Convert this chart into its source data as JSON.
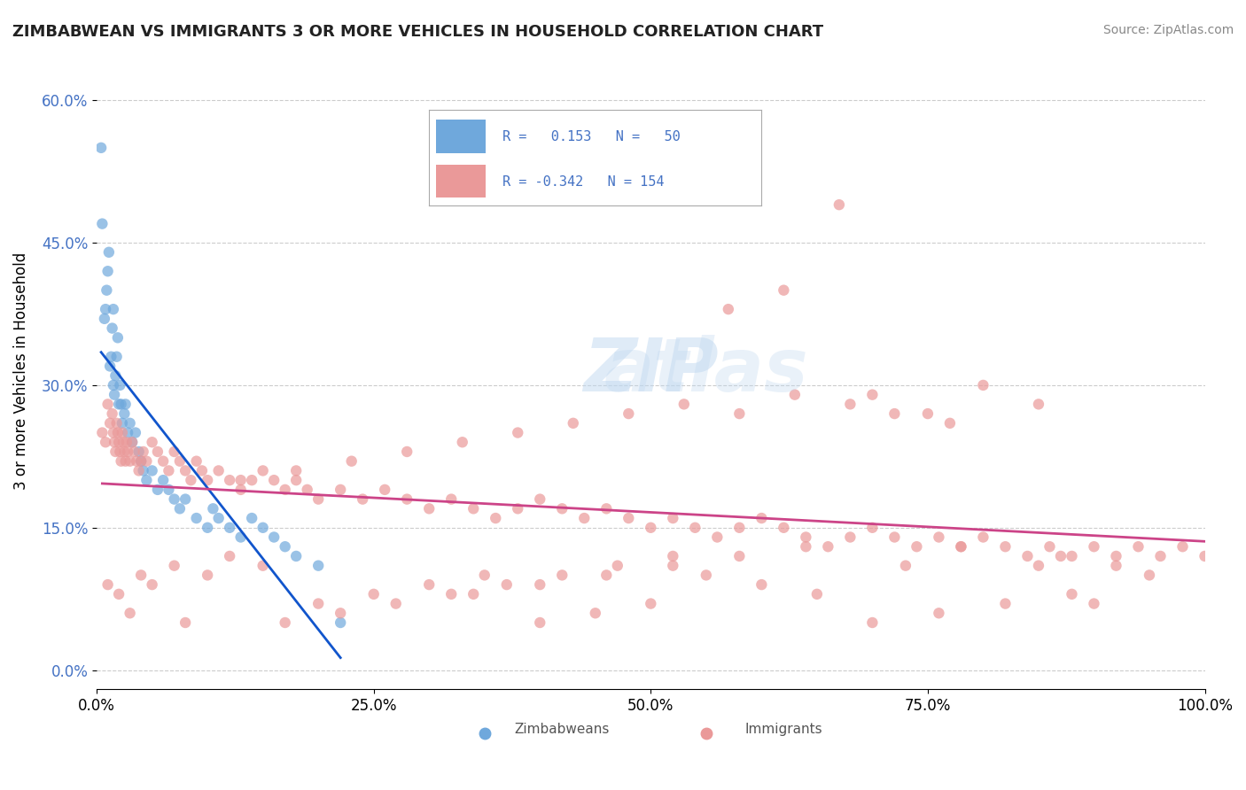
{
  "title": "ZIMBABWEAN VS IMMIGRANTS 3 OR MORE VEHICLES IN HOUSEHOLD CORRELATION CHART",
  "source": "Source: ZipAtlas.com",
  "ylabel": "3 or more Vehicles in Household",
  "xlabel": "",
  "xlim": [
    0.0,
    100.0
  ],
  "ylim": [
    -2.0,
    65.0
  ],
  "yticks": [
    0.0,
    15.0,
    30.0,
    45.0,
    60.0
  ],
  "xticks": [
    0.0,
    25.0,
    50.0,
    75.0,
    100.0
  ],
  "xtick_labels": [
    "0.0%",
    "25.0%",
    "50.0%",
    "75.0%",
    "100.0%"
  ],
  "ytick_labels": [
    "0.0%",
    "15.0%",
    "30.0%",
    "45.0%",
    "60.0%"
  ],
  "blue_R": 0.153,
  "blue_N": 50,
  "pink_R": -0.342,
  "pink_N": 154,
  "blue_color": "#6fa8dc",
  "pink_color": "#ea9999",
  "blue_line_color": "#1155cc",
  "pink_line_color": "#cc4488",
  "watermark": "ZIPatlas",
  "legend_R_label1": "R =   0.153   N =  50",
  "legend_R_label2": "R = -0.342   N = 154",
  "blue_x": [
    0.4,
    0.5,
    0.7,
    0.8,
    0.9,
    1.0,
    1.1,
    1.2,
    1.3,
    1.4,
    1.5,
    1.5,
    1.6,
    1.7,
    1.8,
    1.9,
    2.0,
    2.1,
    2.2,
    2.3,
    2.5,
    2.6,
    2.8,
    3.0,
    3.2,
    3.5,
    3.8,
    4.0,
    4.2,
    4.5,
    5.0,
    5.5,
    6.0,
    6.5,
    7.0,
    7.5,
    8.0,
    9.0,
    10.0,
    10.5,
    11.0,
    12.0,
    13.0,
    14.0,
    15.0,
    16.0,
    17.0,
    18.0,
    20.0,
    22.0
  ],
  "blue_y": [
    55.0,
    47.0,
    37.0,
    38.0,
    40.0,
    42.0,
    44.0,
    32.0,
    33.0,
    36.0,
    38.0,
    30.0,
    29.0,
    31.0,
    33.0,
    35.0,
    28.0,
    30.0,
    28.0,
    26.0,
    27.0,
    28.0,
    25.0,
    26.0,
    24.0,
    25.0,
    23.0,
    22.0,
    21.0,
    20.0,
    21.0,
    19.0,
    20.0,
    19.0,
    18.0,
    17.0,
    18.0,
    16.0,
    15.0,
    17.0,
    16.0,
    15.0,
    14.0,
    16.0,
    15.0,
    14.0,
    13.0,
    12.0,
    11.0,
    5.0
  ],
  "pink_x": [
    0.5,
    0.8,
    1.0,
    1.2,
    1.4,
    1.5,
    1.6,
    1.7,
    1.8,
    1.9,
    2.0,
    2.1,
    2.2,
    2.3,
    2.4,
    2.5,
    2.6,
    2.7,
    2.8,
    3.0,
    3.2,
    3.4,
    3.6,
    3.8,
    4.0,
    4.2,
    4.5,
    5.0,
    5.5,
    6.0,
    6.5,
    7.0,
    7.5,
    8.0,
    8.5,
    9.0,
    9.5,
    10.0,
    11.0,
    12.0,
    13.0,
    14.0,
    15.0,
    16.0,
    17.0,
    18.0,
    19.0,
    20.0,
    22.0,
    24.0,
    26.0,
    28.0,
    30.0,
    32.0,
    34.0,
    36.0,
    38.0,
    40.0,
    42.0,
    44.0,
    46.0,
    48.0,
    50.0,
    52.0,
    54.0,
    56.0,
    58.0,
    60.0,
    62.0,
    64.0,
    66.0,
    68.0,
    70.0,
    72.0,
    74.0,
    76.0,
    78.0,
    80.0,
    82.0,
    84.0,
    86.0,
    88.0,
    90.0,
    92.0,
    94.0,
    96.0,
    98.0,
    100.0,
    70.0,
    75.0,
    80.0,
    85.0,
    72.0,
    77.0,
    63.0,
    68.0,
    58.0,
    53.0,
    48.0,
    43.0,
    38.0,
    33.0,
    28.0,
    23.0,
    18.0,
    13.0,
    8.0,
    3.0,
    55.0,
    60.0,
    65.0,
    50.0,
    45.0,
    40.0,
    35.0,
    30.0,
    25.0,
    20.0,
    15.0,
    10.0,
    5.0,
    2.0,
    90.0,
    85.0,
    95.0,
    87.0,
    92.0,
    78.0,
    73.0,
    67.0,
    62.0,
    57.0,
    52.0,
    47.0,
    42.0,
    37.0,
    32.0,
    27.0,
    22.0,
    17.0,
    12.0,
    7.0,
    4.0,
    1.0,
    88.0,
    82.0,
    76.0,
    70.0,
    64.0,
    58.0,
    52.0,
    46.0,
    40.0,
    34.0
  ],
  "pink_y": [
    25.0,
    24.0,
    28.0,
    26.0,
    27.0,
    25.0,
    24.0,
    23.0,
    26.0,
    25.0,
    24.0,
    23.0,
    22.0,
    25.0,
    24.0,
    23.0,
    22.0,
    24.0,
    23.0,
    22.0,
    24.0,
    23.0,
    22.0,
    21.0,
    22.0,
    23.0,
    22.0,
    24.0,
    23.0,
    22.0,
    21.0,
    23.0,
    22.0,
    21.0,
    20.0,
    22.0,
    21.0,
    20.0,
    21.0,
    20.0,
    19.0,
    20.0,
    21.0,
    20.0,
    19.0,
    20.0,
    19.0,
    18.0,
    19.0,
    18.0,
    19.0,
    18.0,
    17.0,
    18.0,
    17.0,
    16.0,
    17.0,
    18.0,
    17.0,
    16.0,
    17.0,
    16.0,
    15.0,
    16.0,
    15.0,
    14.0,
    15.0,
    16.0,
    15.0,
    14.0,
    13.0,
    14.0,
    15.0,
    14.0,
    13.0,
    14.0,
    13.0,
    14.0,
    13.0,
    12.0,
    13.0,
    12.0,
    13.0,
    12.0,
    13.0,
    12.0,
    13.0,
    12.0,
    29.0,
    27.0,
    30.0,
    28.0,
    27.0,
    26.0,
    29.0,
    28.0,
    27.0,
    28.0,
    27.0,
    26.0,
    25.0,
    24.0,
    23.0,
    22.0,
    21.0,
    20.0,
    5.0,
    6.0,
    10.0,
    9.0,
    8.0,
    7.0,
    6.0,
    5.0,
    10.0,
    9.0,
    8.0,
    7.0,
    11.0,
    10.0,
    9.0,
    8.0,
    7.0,
    11.0,
    10.0,
    12.0,
    11.0,
    13.0,
    11.0,
    49.0,
    40.0,
    38.0,
    12.0,
    11.0,
    10.0,
    9.0,
    8.0,
    7.0,
    6.0,
    5.0,
    12.0,
    11.0,
    10.0,
    9.0,
    8.0,
    7.0,
    6.0,
    5.0,
    13.0,
    12.0,
    11.0,
    10.0,
    9.0,
    8.0
  ]
}
